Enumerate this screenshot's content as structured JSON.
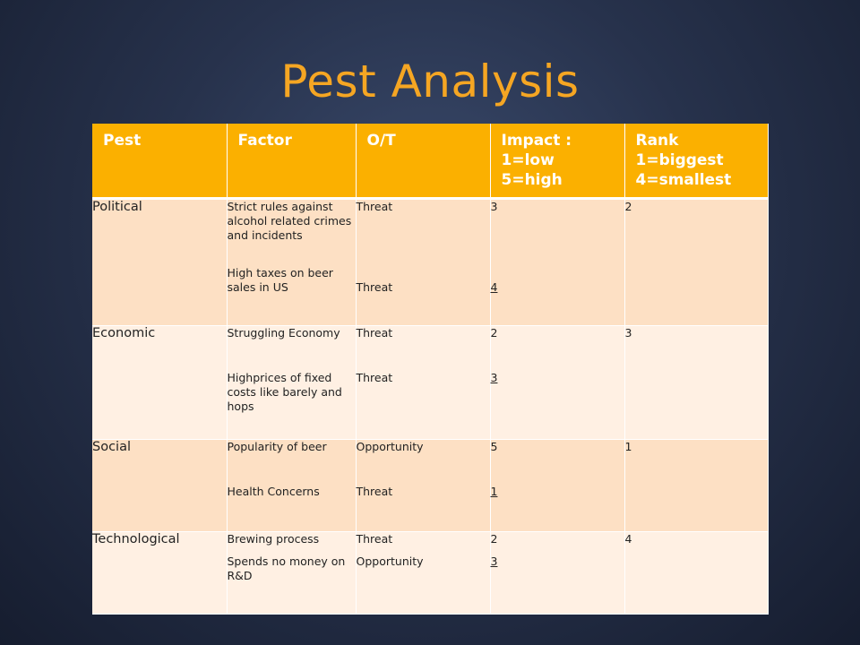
{
  "title": "Pest Analysis",
  "headers": {
    "pest": "Pest",
    "factor": "Factor",
    "ot": "O/T",
    "impact": [
      "Impact :",
      "1=low",
      "5=high"
    ],
    "rank": [
      "Rank",
      "1=biggest",
      "4=smallest"
    ]
  },
  "rows": [
    {
      "pest": "Political",
      "factors": [
        "Strict rules against alcohol related crimes and incidents",
        "High taxes on beer sales in US"
      ],
      "ot": [
        "Threat",
        "Threat"
      ],
      "impact": [
        "3",
        "4"
      ],
      "rank": "2"
    },
    {
      "pest": "Economic",
      "factors": [
        "Struggling Economy",
        "Highprices of fixed costs like barely and hops"
      ],
      "ot": [
        "Threat",
        "Threat"
      ],
      "impact": [
        "2",
        "3"
      ],
      "rank": "3"
    },
    {
      "pest": "Social",
      "factors": [
        "Popularity of beer",
        "Health Concerns"
      ],
      "ot": [
        "Opportunity",
        "Threat"
      ],
      "impact": [
        "5",
        "1"
      ],
      "rank": "1"
    },
    {
      "pest": "Technological",
      "factors": [
        "Brewing process",
        "Spends no money on R&D"
      ],
      "ot": [
        "Threat",
        "Opportunity"
      ],
      "impact": [
        "2",
        "3"
      ],
      "rank": "4"
    }
  ]
}
